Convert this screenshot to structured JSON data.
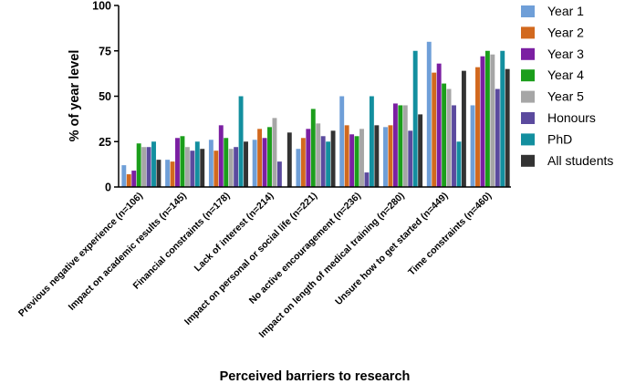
{
  "chart_data": {
    "type": "bar",
    "title": "",
    "xlabel": "Perceived barriers to research",
    "ylabel": "% of year level",
    "ylim": [
      0,
      100
    ],
    "yticks": [
      0,
      25,
      50,
      75,
      100
    ],
    "grid": false,
    "legend_position": "right",
    "categories": [
      "Previous negative experience (n=106)",
      "Impact on academic results (n=145)",
      "Financial constraints (n=178)",
      "Lack of interest (n=214)",
      "Impact on personal or social life (n=221)",
      "No active encouragement (n=236)",
      "Impact on length of medical training (n=280)",
      "Unsure how to get started (n=449)",
      "Time constraints (n=460)"
    ],
    "series": [
      {
        "name": "Year 1",
        "color": "#6F9FD8",
        "values": [
          12,
          15,
          26,
          26,
          21,
          50,
          33,
          80,
          45
        ]
      },
      {
        "name": "Year 2",
        "color": "#D2691E",
        "values": [
          7,
          14,
          20,
          32,
          27,
          34,
          34,
          63,
          66
        ]
      },
      {
        "name": "Year 3",
        "color": "#7B1FA2",
        "values": [
          9,
          27,
          34,
          27,
          32,
          29,
          46,
          68,
          72
        ]
      },
      {
        "name": "Year 4",
        "color": "#1B9E1B",
        "values": [
          24,
          28,
          27,
          33,
          43,
          28,
          45,
          57,
          75
        ]
      },
      {
        "name": "Year 5",
        "color": "#A6A6A6",
        "values": [
          22,
          22,
          21,
          38,
          35,
          32,
          45,
          54,
          73
        ]
      },
      {
        "name": "Honours",
        "color": "#5B4A9E",
        "values": [
          22,
          20,
          22,
          14,
          28,
          8,
          31,
          45,
          54
        ]
      },
      {
        "name": "PhD",
        "color": "#138F9F",
        "values": [
          25,
          25,
          50,
          0,
          25,
          50,
          75,
          25,
          75
        ]
      },
      {
        "name": "All students",
        "color": "#333333",
        "values": [
          15,
          21,
          25,
          30,
          31,
          34,
          40,
          64,
          65
        ]
      }
    ]
  }
}
